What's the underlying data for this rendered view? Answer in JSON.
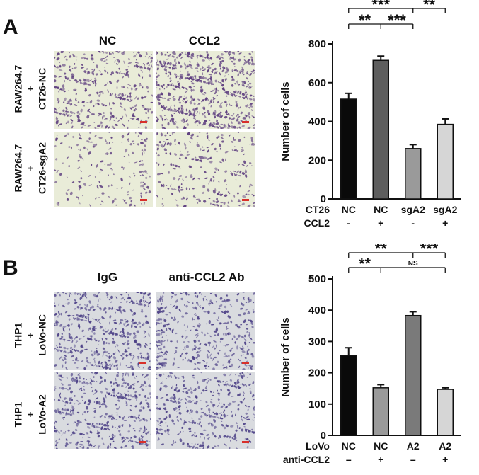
{
  "panels": [
    {
      "letter": "A",
      "col_headers": [
        "NC",
        "CCL2"
      ],
      "row_labels": [
        [
          "RAW264.7",
          "+",
          "CT26-NC"
        ],
        [
          "RAW264.7",
          "+",
          "CT26-sgA2"
        ]
      ],
      "micrographs": {
        "background": "#e9ecd8",
        "stain": "#5b3b7e",
        "densities": [
          [
            "medium",
            "high"
          ],
          [
            "low",
            "low-medium"
          ]
        ]
      }
    },
    {
      "letter": "B",
      "col_headers": [
        "IgG",
        "anti-CCL2 Ab"
      ],
      "row_labels": [
        [
          "THP1",
          "+",
          "LoVo-NC"
        ],
        [
          "THP1",
          "+",
          "LoVo-A2"
        ]
      ],
      "micrographs": {
        "background": "#d9dbdf",
        "stain": "#4b3f86",
        "densities": [
          [
            "medium-high",
            "medium"
          ],
          [
            "medium-high",
            "medium"
          ]
        ]
      }
    }
  ],
  "chart_data": [
    {
      "type": "bar",
      "ylabel": "Number of cells",
      "ylim": [
        0,
        800
      ],
      "yticks": [
        0,
        200,
        400,
        600,
        800
      ],
      "categories": [
        "NC -",
        "NC +",
        "sgA2 -",
        "sgA2 +"
      ],
      "values": [
        515,
        715,
        260,
        385
      ],
      "errors": [
        30,
        22,
        20,
        28
      ],
      "bar_colors": [
        "#0a0a0a",
        "#5e5e5e",
        "#9a9a9a",
        "#d6d6d6"
      ],
      "factor_rows": [
        {
          "name": "CT26",
          "levels": [
            "NC",
            "NC",
            "sgA2",
            "sgA2"
          ]
        },
        {
          "name": "CCL2",
          "levels": [
            "-",
            "+",
            "-",
            "+"
          ]
        }
      ],
      "significance": [
        {
          "from": 0,
          "to": 2,
          "tick_at": 1,
          "tier": 2,
          "left_label": "**",
          "right_label": "***"
        },
        {
          "from": 0,
          "to": 3,
          "tick_at": 2,
          "tier": 1,
          "left_label": "***",
          "right_label": "**"
        }
      ]
    },
    {
      "type": "bar",
      "ylabel": "Number of cells",
      "ylim": [
        0,
        500
      ],
      "yticks": [
        0,
        100,
        200,
        300,
        400,
        500
      ],
      "categories": [
        "NC –",
        "NC +",
        "A2 –",
        "A2 +"
      ],
      "values": [
        255,
        152,
        383,
        147
      ],
      "errors": [
        25,
        10,
        12,
        5
      ],
      "bar_colors": [
        "#0a0a0a",
        "#9a9a9a",
        "#7a7a7a",
        "#d6d6d6"
      ],
      "factor_rows": [
        {
          "name": "LoVo",
          "levels": [
            "NC",
            "NC",
            "A2",
            "A2"
          ]
        },
        {
          "name": "anti-CCL2",
          "levels": [
            "–",
            "+",
            "–",
            "+"
          ]
        }
      ],
      "significance": [
        {
          "from": 0,
          "to": 3,
          "tick_at": 1,
          "tier": 2,
          "left_label": "**",
          "right_label": "NS"
        },
        {
          "from": 0,
          "to": 3,
          "tick_at": 2,
          "tier": 1,
          "left_label": "**",
          "right_label": "***"
        }
      ]
    }
  ]
}
